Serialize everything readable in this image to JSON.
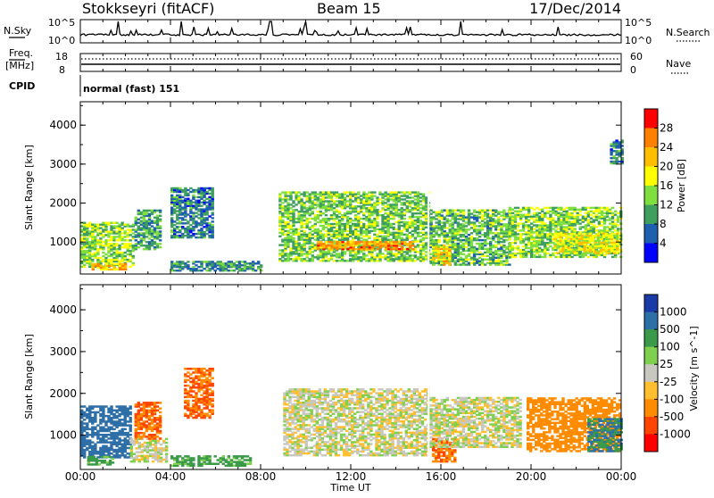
{
  "header": {
    "station": "Stokkseyri (fitACF)",
    "beam": "Beam 15",
    "date": "17/Dec/2014"
  },
  "left_labels": {
    "nsky": "N.Sky",
    "freq_line1": "Freq.",
    "freq_line2": "[MHz]",
    "cpid": "CPID"
  },
  "right_labels": {
    "nsearch": "N.Search",
    "nave": "Nave"
  },
  "noise_panel": {
    "left_ticks": [
      "10^5",
      "10^0"
    ],
    "right_ticks": [
      "10^5",
      "10^0"
    ]
  },
  "freq_panel": {
    "left_ticks": [
      "18",
      "8"
    ],
    "right_ticks": [
      "60",
      "0"
    ]
  },
  "cpid_panel": {
    "text": "normal (fast) 151"
  },
  "power_colorbar": {
    "label": "Power [dB]",
    "ticks": [
      "28",
      "24",
      "20",
      "16",
      "12",
      "8",
      "4"
    ],
    "colors": [
      "#ff0000",
      "#ff7f00",
      "#ffbf00",
      "#ffff00",
      "#7fdf3f",
      "#3f9f5f",
      "#1f5faf",
      "#0000ff"
    ]
  },
  "velocity_colorbar": {
    "label": "Velocity [m s^-1]",
    "ticks": [
      "1000",
      "500",
      "100",
      "25",
      "-25",
      "-100",
      "-500",
      "-1000"
    ],
    "colors": [
      "#1a3aa8",
      "#2e6fa8",
      "#3a9a4a",
      "#7fd04f",
      "#c8c8c0",
      "#ffbf2f",
      "#ff8c00",
      "#ff4500",
      "#ff0000"
    ]
  },
  "yaxis": {
    "label": "Slant Range [km]",
    "ticks": [
      "4000",
      "3000",
      "2000",
      "1000"
    ]
  },
  "xaxis": {
    "label": "Time UT",
    "ticks": [
      "00:00",
      "04:00",
      "08:00",
      "12:00",
      "16:00",
      "20:00",
      "00:00"
    ]
  },
  "chart_data": [
    {
      "type": "heatmap",
      "title": "Power",
      "xlabel": "Time UT",
      "ylabel": "Slant Range [km]",
      "xlim": [
        0,
        24
      ],
      "ylim": [
        180,
        4600
      ],
      "colorbar_label": "Power [dB]",
      "blobs": [
        {
          "t0": 0.0,
          "t1": 2.4,
          "r0": 350,
          "r1": 1500,
          "level": 14
        },
        {
          "t0": 0.5,
          "t1": 2.0,
          "r0": 280,
          "r1": 450,
          "level": 22
        },
        {
          "t0": 2.4,
          "t1": 3.6,
          "r0": 800,
          "r1": 1800,
          "level": 10
        },
        {
          "t0": 4.0,
          "t1": 5.9,
          "r0": 1100,
          "r1": 2400,
          "level": 8
        },
        {
          "t0": 4.0,
          "t1": 8.0,
          "r0": 250,
          "r1": 500,
          "level": 9
        },
        {
          "t0": 8.8,
          "t1": 15.4,
          "r0": 500,
          "r1": 2300,
          "level": 13
        },
        {
          "t0": 10.5,
          "t1": 14.8,
          "r0": 800,
          "r1": 1000,
          "level": 24
        },
        {
          "t0": 15.5,
          "t1": 19.0,
          "r0": 400,
          "r1": 1800,
          "level": 12
        },
        {
          "t0": 15.6,
          "t1": 16.4,
          "r0": 400,
          "r1": 900,
          "level": 20
        },
        {
          "t0": 19.0,
          "t1": 24.0,
          "r0": 600,
          "r1": 1900,
          "level": 14
        },
        {
          "t0": 21.0,
          "t1": 24.0,
          "r0": 700,
          "r1": 1200,
          "level": 18
        },
        {
          "t0": 23.5,
          "t1": 24.0,
          "r0": 3000,
          "r1": 3600,
          "level": 8
        }
      ]
    },
    {
      "type": "heatmap",
      "title": "Velocity",
      "xlabel": "Time UT",
      "ylabel": "Slant Range [km]",
      "xlim": [
        0,
        24
      ],
      "ylim": [
        180,
        4600
      ],
      "colorbar_label": "Velocity [m s^-1]",
      "blobs": [
        {
          "t0": 0.0,
          "t1": 2.2,
          "r0": 450,
          "r1": 1700,
          "level": 500
        },
        {
          "t0": 0.3,
          "t1": 1.5,
          "r0": 280,
          "r1": 500,
          "level": 100
        },
        {
          "t0": 2.2,
          "t1": 3.8,
          "r0": 350,
          "r1": 900,
          "level": 0
        },
        {
          "t0": 2.4,
          "t1": 3.5,
          "r0": 900,
          "r1": 1800,
          "level": -500
        },
        {
          "t0": 4.6,
          "t1": 5.9,
          "r0": 1400,
          "r1": 2600,
          "level": -500
        },
        {
          "t0": 4.0,
          "t1": 7.5,
          "r0": 250,
          "r1": 500,
          "level": 100
        },
        {
          "t0": 9.0,
          "t1": 15.4,
          "r0": 500,
          "r1": 2100,
          "level": 0
        },
        {
          "t0": 15.6,
          "t1": 16.6,
          "r0": 350,
          "r1": 900,
          "level": -500
        },
        {
          "t0": 15.5,
          "t1": 19.5,
          "r0": 700,
          "r1": 1900,
          "level": 0
        },
        {
          "t0": 19.8,
          "t1": 24.0,
          "r0": 600,
          "r1": 1900,
          "level": -200
        },
        {
          "t0": 22.5,
          "t1": 24.0,
          "r0": 600,
          "r1": 1400,
          "level": 300
        }
      ]
    }
  ]
}
